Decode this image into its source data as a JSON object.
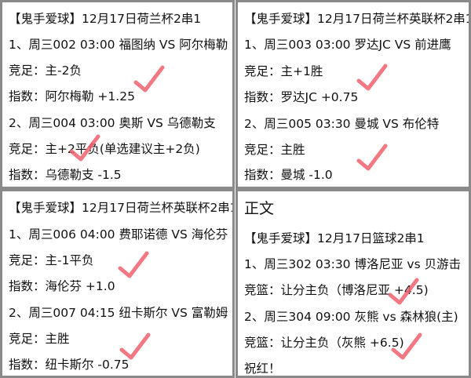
{
  "panels": [
    {
      "lines": [
        "【鬼手爱球】12月17日荷兰杯2串1",
        "1、周三002 03:00 福图纳 VS 阿尔梅勒",
        "竞足：主-2负",
        "指数：阿尔梅勒 +1.25",
        "2、周三004 03:00 奥斯 VS 乌德勒支",
        "竞足：主+2平负(单选建议主+2负)",
        "指数：乌德勒支 -1.5"
      ]
    },
    {
      "lines": [
        "【鬼手爱球】12月17日荷兰杯英联杯2串1",
        "1、周三003 03:00 罗达JC VS 前进鹰",
        "竞足：主+1胜",
        "指数：罗达JC +0.75",
        "2、周三005 03:30 曼城 VS 布伦特",
        "竞足：主胜",
        "指数：曼城 -1.0"
      ]
    },
    {
      "lines": [
        "【鬼手爱球】12月17日荷兰杯英联杯2串1",
        "1、周三006 04:00 费耶诺德 VS 海伦芬",
        "竞足：主-1平负",
        "指数：海伦芬 +1.0",
        "2、周三007 04:15 纽卡斯尔 VS 富勒姆",
        "竞足：主胜",
        "指数：纽卡斯尔 -0.75"
      ]
    },
    {
      "title": "正文",
      "lines": [
        "【鬼手爱球】12月17日篮球2串1",
        "1、周三302 03:30 博洛尼亚 vs 贝游击",
        "竞篮：让分主负（博洛尼亚 +4.5)",
        "2、周三304 09:00 灰熊 vs 森林狼(主)",
        "竞篮：让分主负（灰熊 +6.5)",
        "祝红！"
      ]
    }
  ],
  "colors": {
    "check": "#f0606e",
    "border": "#8a8a8a"
  },
  "icons": [
    "checkmark-icon"
  ]
}
